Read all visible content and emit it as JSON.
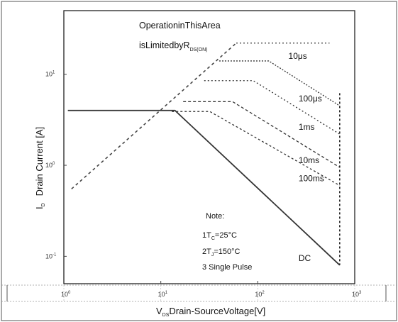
{
  "chart_data": {
    "type": "line",
    "scale": {
      "x": "log",
      "y": "log"
    },
    "xlim": [
      1,
      1000
    ],
    "ylim": [
      0.05,
      50
    ],
    "x_ticks": [
      {
        "value": 1,
        "base": "10",
        "exp": "0"
      },
      {
        "value": 10,
        "base": "10",
        "exp": "1"
      },
      {
        "value": 100,
        "base": "10",
        "exp": "2"
      },
      {
        "value": 1000,
        "base": "10",
        "exp": "3"
      }
    ],
    "y_ticks": [
      {
        "value": 0.1,
        "base": "10",
        "exp": "-1"
      },
      {
        "value": 1,
        "base": "10",
        "exp": "0"
      },
      {
        "value": 10,
        "base": "10",
        "exp": "1"
      }
    ],
    "xlabel": {
      "v": "V",
      "sub": "DS",
      "rest": "Drain-SourceVoltage[V]"
    },
    "ylabel": {
      "i": "I",
      "sub": "D",
      "rest": "Drain Current [A]"
    },
    "annotation_area": {
      "line1": "OperationinThisArea",
      "line2": "isLimitedbyR",
      "sub": "DS(ON)"
    },
    "notes": {
      "title": "Note:",
      "n1": {
        "pre": "1T",
        "sub": "C",
        "post": "=25°C"
      },
      "n2": {
        "pre": "2T",
        "sub": "J",
        "post": "=150°C"
      },
      "n3": "3 Single Pulse"
    },
    "rds_on_limit": {
      "x": [
        1.2,
        60
      ],
      "y": [
        0.55,
        22
      ]
    },
    "series": [
      {
        "name": "10μs",
        "dash": "2,3",
        "x": [
          60,
          550
        ],
        "y": [
          22,
          22
        ]
      },
      {
        "name": "100μs",
        "dash": "2,2",
        "x": [
          40,
          130,
          700
        ],
        "y": [
          14,
          14,
          4.5
        ]
      },
      {
        "name": "1ms",
        "dash": "2,3",
        "x": [
          28,
          90,
          700
        ],
        "y": [
          8.5,
          8.5,
          2.2
        ]
      },
      {
        "name": "10ms",
        "dash": "4,3",
        "x": [
          17,
          55,
          700
        ],
        "y": [
          5,
          5,
          0.95
        ]
      },
      {
        "name": "100ms",
        "dash": "3,3",
        "x": [
          13,
          32,
          700
        ],
        "y": [
          3.9,
          3.9,
          0.6
        ]
      },
      {
        "name": "DC",
        "dash": "",
        "x": [
          1.1,
          14,
          700
        ],
        "y": [
          4,
          4,
          0.08
        ]
      }
    ],
    "vertical_limit": {
      "x": 700,
      "y": [
        0.08,
        6.2
      ]
    }
  }
}
